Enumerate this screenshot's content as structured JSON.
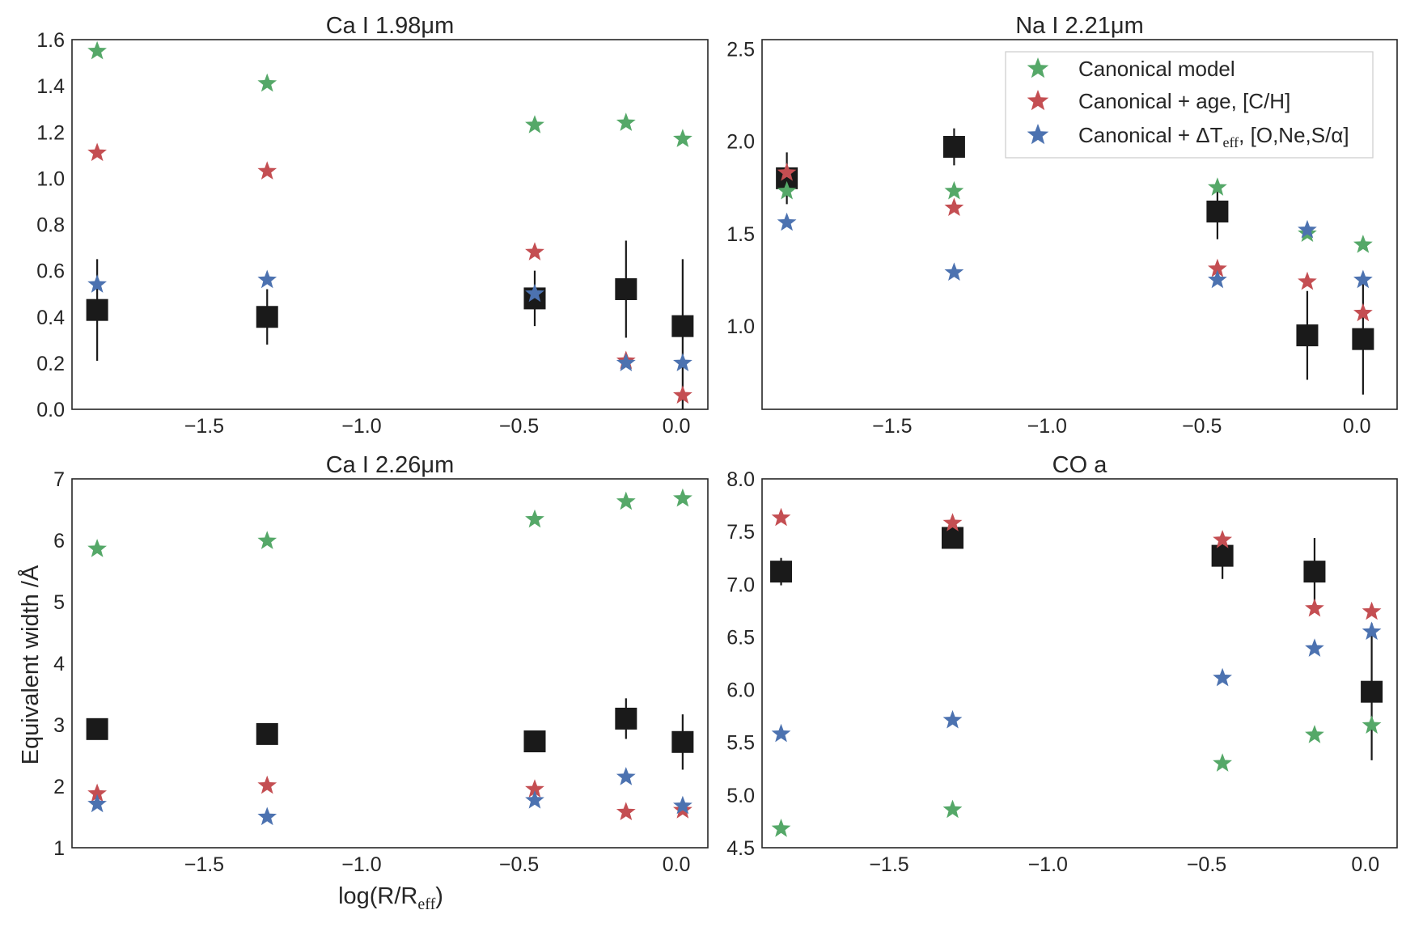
{
  "figure": {
    "ylabel": "Equivalent width /Å",
    "xlabel_main": "log(R/R",
    "xlabel_sub": "eff",
    "xlabel_close": ")"
  },
  "colors": {
    "canonical": "#55a868",
    "age_ch": "#c44e52",
    "teff_alpha": "#4c72b0",
    "data": "#1a1a1a"
  },
  "legend": {
    "items": [
      {
        "label": "Canonical model",
        "color": "#55a868"
      },
      {
        "label": "Canonical + age, [C/H]",
        "color": "#c44e52"
      },
      {
        "label_prefix": "Canonical + ΔT",
        "label_sub": "eff",
        "label_suffix": ", [O,Ne,S/α]",
        "color": "#4c72b0"
      }
    ]
  },
  "chart_data": [
    {
      "type": "scatter",
      "title": "Ca I 1.98μm",
      "xlim": [
        -1.92,
        0.1
      ],
      "ylim": [
        0.0,
        1.6
      ],
      "yticks": [
        0.0,
        0.2,
        0.4,
        0.6,
        0.8,
        1.0,
        1.2,
        1.4,
        1.6
      ],
      "ytick_labels": [
        "0.0",
        "0.2",
        "0.4",
        "0.6",
        "0.8",
        "1.0",
        "1.2",
        "1.4",
        "1.6"
      ],
      "xticks": [
        -1.5,
        -1.0,
        -0.5,
        0.0
      ],
      "xtick_labels": [
        "−1.5",
        "−1.0",
        "−0.5",
        "0.0"
      ],
      "x": [
        -1.84,
        -1.3,
        -0.45,
        -0.16,
        0.02
      ],
      "observed": {
        "name": "Data",
        "values": [
          0.43,
          0.4,
          0.48,
          0.52,
          0.36
        ],
        "err_low": [
          0.22,
          0.12,
          0.12,
          0.21,
          0.36
        ],
        "err_high": [
          0.22,
          0.12,
          0.12,
          0.21,
          0.29
        ]
      },
      "series": [
        {
          "name": "Canonical model",
          "values": [
            1.55,
            1.41,
            1.23,
            1.24,
            1.17
          ]
        },
        {
          "name": "Canonical + age, [C/H]",
          "values": [
            1.11,
            1.03,
            0.68,
            0.21,
            0.06
          ]
        },
        {
          "name": "Canonical + ΔTeff, [O,Ne,S/α]",
          "values": [
            0.54,
            0.56,
            0.5,
            0.2,
            0.2
          ]
        }
      ]
    },
    {
      "type": "scatter",
      "title": "Na I 2.21μm",
      "xlim": [
        -1.92,
        0.13
      ],
      "ylim": [
        0.55,
        2.55
      ],
      "yticks": [
        1.0,
        1.5,
        2.0,
        2.5
      ],
      "ytick_labels": [
        "1.0",
        "1.5",
        "2.0",
        "2.5"
      ],
      "xticks": [
        -1.5,
        -1.0,
        -0.5,
        0.0
      ],
      "xtick_labels": [
        "−1.5",
        "−1.0",
        "−0.5",
        "0.0"
      ],
      "x": [
        -1.84,
        -1.3,
        -0.45,
        -0.16,
        0.02
      ],
      "observed": {
        "name": "Data",
        "values": [
          1.8,
          1.97,
          1.62,
          0.95,
          0.93
        ],
        "err_low": [
          0.14,
          0.1,
          0.15,
          0.24,
          0.3
        ],
        "err_high": [
          0.14,
          0.1,
          0.15,
          0.24,
          0.3
        ]
      },
      "series": [
        {
          "name": "Canonical model",
          "values": [
            1.73,
            1.73,
            1.75,
            1.5,
            1.44
          ]
        },
        {
          "name": "Canonical + age, [C/H]",
          "values": [
            1.83,
            1.64,
            1.31,
            1.24,
            1.07
          ]
        },
        {
          "name": "Canonical + ΔTeff, [O,Ne,S/α]",
          "values": [
            1.56,
            1.29,
            1.25,
            1.52,
            1.25
          ]
        }
      ]
    },
    {
      "type": "scatter",
      "title": "Ca I 2.26μm",
      "xlim": [
        -1.92,
        0.1
      ],
      "ylim": [
        1.0,
        7.0
      ],
      "yticks": [
        1,
        2,
        3,
        4,
        5,
        6,
        7
      ],
      "ytick_labels": [
        "1",
        "2",
        "3",
        "4",
        "5",
        "6",
        "7"
      ],
      "xticks": [
        -1.5,
        -1.0,
        -0.5,
        0.0
      ],
      "xtick_labels": [
        "−1.5",
        "−1.0",
        "−0.5",
        "0.0"
      ],
      "x": [
        -1.84,
        -1.3,
        -0.45,
        -0.16,
        0.02
      ],
      "observed": {
        "name": "Data",
        "values": [
          2.93,
          2.85,
          2.73,
          3.1,
          2.72
        ],
        "err_low": [
          0.08,
          0.08,
          0.08,
          0.33,
          0.45
        ],
        "err_high": [
          0.08,
          0.08,
          0.08,
          0.33,
          0.45
        ]
      },
      "series": [
        {
          "name": "Canonical model",
          "values": [
            5.86,
            5.99,
            6.34,
            6.63,
            6.68
          ]
        },
        {
          "name": "Canonical + age, [C/H]",
          "values": [
            1.88,
            2.01,
            1.95,
            1.58,
            1.61
          ]
        },
        {
          "name": "Canonical + ΔTeff, [O,Ne,S/α]",
          "values": [
            1.71,
            1.5,
            1.77,
            2.15,
            1.68
          ]
        }
      ]
    },
    {
      "type": "scatter",
      "title": "CO a",
      "xlim": [
        -1.9,
        0.1
      ],
      "ylim": [
        4.5,
        8.0
      ],
      "yticks": [
        4.5,
        5.0,
        5.5,
        6.0,
        6.5,
        7.0,
        7.5,
        8.0
      ],
      "ytick_labels": [
        "4.5",
        "5.0",
        "5.5",
        "6.0",
        "6.5",
        "7.0",
        "7.5",
        "8.0"
      ],
      "xticks": [
        -1.5,
        -1.0,
        -0.5,
        0.0
      ],
      "xtick_labels": [
        "−1.5",
        "−1.0",
        "−0.5",
        "0.0"
      ],
      "x": [
        -1.84,
        -1.3,
        -0.45,
        -0.16,
        0.02
      ],
      "observed": {
        "name": "Data",
        "values": [
          7.12,
          7.44,
          7.27,
          7.12,
          5.98
        ],
        "err_low": [
          0.13,
          0.08,
          0.22,
          0.32,
          0.65
        ],
        "err_high": [
          0.13,
          0.08,
          0.22,
          0.32,
          0.65
        ]
      },
      "series": [
        {
          "name": "Canonical model",
          "values": [
            4.68,
            4.86,
            5.3,
            5.57,
            5.66
          ]
        },
        {
          "name": "Canonical + age, [C/H]",
          "values": [
            7.63,
            7.58,
            7.42,
            6.77,
            6.74
          ]
        },
        {
          "name": "Canonical + ΔTeff, [O,Ne,S/α]",
          "values": [
            5.58,
            5.71,
            6.11,
            6.39,
            6.55
          ]
        }
      ]
    }
  ]
}
